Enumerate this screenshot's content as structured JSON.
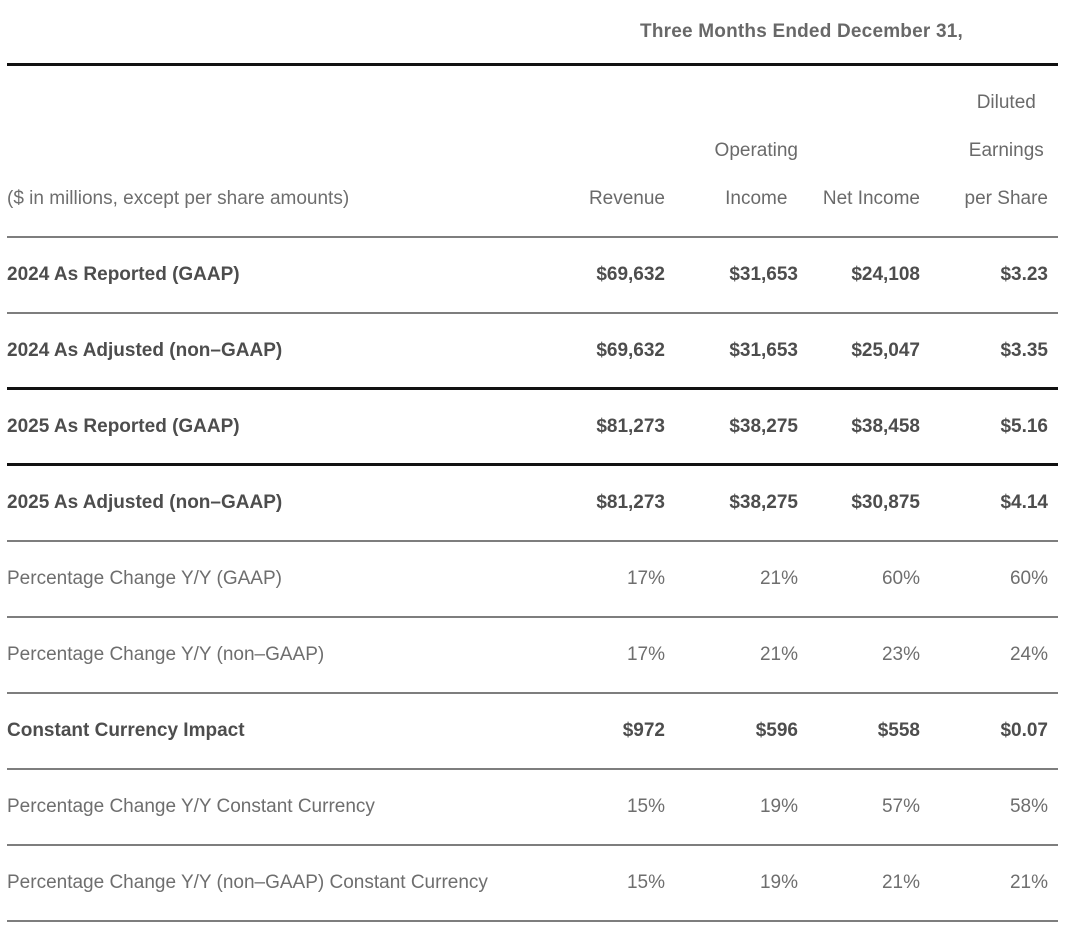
{
  "chart_data": {
    "type": "table",
    "title": "Three Months Ended December 31,",
    "corner_label": "($ in millions, except per share amounts)",
    "units_note": "$ in millions, except per share amounts",
    "columns": [
      {
        "name": "Revenue",
        "lines": [
          "Revenue"
        ]
      },
      {
        "name": "Operating Income",
        "lines": [
          "Operating",
          "Income"
        ]
      },
      {
        "name": "Net Income",
        "lines": [
          "Net Income"
        ]
      },
      {
        "name": "Diluted Earnings per Share",
        "lines": [
          "Diluted",
          "Earnings",
          "per Share"
        ]
      }
    ],
    "rows": [
      {
        "label": "2024 As Reported (GAAP)",
        "emphasis": true,
        "values": [
          "$69,632",
          "$31,653",
          "$24,108",
          "$3.23"
        ]
      },
      {
        "label": "2024 As Adjusted (non–GAAP)",
        "emphasis": true,
        "values": [
          "$69,632",
          "$31,653",
          "$25,047",
          "$3.35"
        ]
      },
      {
        "label": "2025 As Reported (GAAP)",
        "emphasis": true,
        "values": [
          "$81,273",
          "$38,275",
          "$38,458",
          "$5.16"
        ]
      },
      {
        "label": "2025 As Adjusted (non–GAAP)",
        "emphasis": true,
        "values": [
          "$81,273",
          "$38,275",
          "$30,875",
          "$4.14"
        ]
      },
      {
        "label": "Percentage Change Y/Y (GAAP)",
        "emphasis": false,
        "values": [
          "17%",
          "21%",
          "60%",
          "60%"
        ]
      },
      {
        "label": "Percentage Change Y/Y (non–GAAP)",
        "emphasis": false,
        "values": [
          "17%",
          "21%",
          "23%",
          "24%"
        ]
      },
      {
        "label": "Constant Currency Impact",
        "emphasis": true,
        "values": [
          "$972",
          "$596",
          "$558",
          "$0.07"
        ]
      },
      {
        "label": "Percentage Change Y/Y Constant Currency",
        "emphasis": false,
        "values": [
          "15%",
          "19%",
          "57%",
          "58%"
        ]
      },
      {
        "label": "Percentage Change Y/Y (non–GAAP) Constant Currency",
        "emphasis": false,
        "values": [
          "15%",
          "19%",
          "21%",
          "21%"
        ]
      }
    ],
    "colors": {
      "background": "#ffffff",
      "emphasis_text": "#4d4d4d",
      "regular_text": "#6e6e6e",
      "header_text": "#6a6a6a",
      "rule_dark": "#111111",
      "rule_gray": "#7e7e7e"
    },
    "layout_hints": {
      "value_alignment": "right",
      "dark_rules_after_rows": [
        1,
        2
      ],
      "dark_rule_under_title": true
    }
  }
}
